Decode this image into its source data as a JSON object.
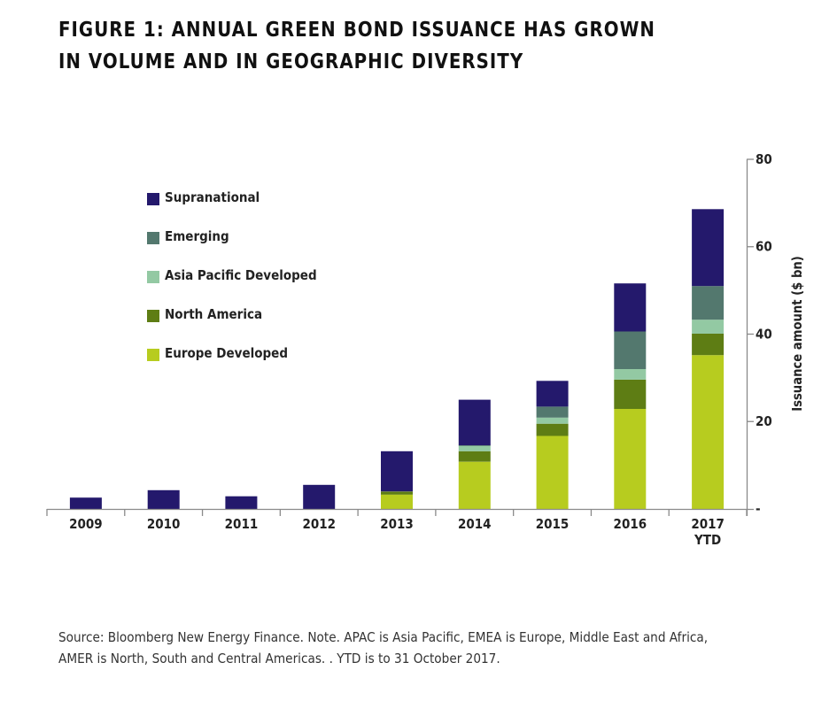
{
  "title_lines": [
    "FIGURE 1: ANNUAL GREEN BOND ISSUANCE HAS GROWN",
    "IN VOLUME AND IN GEOGRAPHIC DIVERSITY"
  ],
  "footnote_lines": [
    "Source: Bloomberg New Energy Finance. Note. APAC is Asia Pacific, EMEA is Europe, Middle East and Africa,",
    "AMER is North, South and Central Americas. .  YTD is to 31 October 2017."
  ],
  "chart_data": {
    "type": "bar",
    "stacked": true,
    "title": "FIGURE 1: ANNUAL GREEN BOND ISSUANCE HAS GROWN IN VOLUME AND IN GEOGRAPHIC DIVERSITY",
    "xlabel": "",
    "ylabel": "Issuance amount ($ bn)",
    "y_axis_position": "right",
    "ylim": [
      0,
      80
    ],
    "yticks": [
      0,
      20,
      40,
      60,
      80
    ],
    "ytick_labels": [
      "-",
      "20",
      "40",
      "60",
      "80"
    ],
    "grid": false,
    "legend_position": "top-left",
    "categories": [
      "2009",
      "2010",
      "2011",
      "2012",
      "2013",
      "2014",
      "2015",
      "2016",
      "2017 YTD"
    ],
    "category_labels": [
      [
        "2009"
      ],
      [
        "2010"
      ],
      [
        "2011"
      ],
      [
        "2012"
      ],
      [
        "2013"
      ],
      [
        "2014"
      ],
      [
        "2015"
      ],
      [
        "2016"
      ],
      [
        "2017",
        "YTD"
      ]
    ],
    "series": [
      {
        "name": "Europe Developed",
        "color": "#b7cc1f",
        "values": [
          0,
          0,
          0,
          0,
          3.3,
          10.8,
          16.7,
          22.9,
          35.2
        ]
      },
      {
        "name": "North America",
        "color": "#5e7d14",
        "values": [
          0,
          0,
          0,
          0,
          0.7,
          2.4,
          2.8,
          6.7,
          4.9
        ]
      },
      {
        "name": "Asia Pacific Developed",
        "color": "#93c9a3",
        "values": [
          0,
          0,
          0,
          0,
          0,
          1.2,
          1.4,
          2.4,
          3.2
        ]
      },
      {
        "name": "Emerging",
        "color": "#53786e",
        "values": [
          0,
          0,
          0,
          0,
          0,
          0.2,
          2.5,
          8.6,
          7.7
        ]
      },
      {
        "name": "Supranational",
        "color": "#24196c",
        "values": [
          2.6,
          4.3,
          2.9,
          5.5,
          9.2,
          10.4,
          5.9,
          11.0,
          17.6
        ]
      }
    ],
    "legend_order": [
      "Supranational",
      "Emerging",
      "Asia Pacific Developed",
      "North America",
      "Europe Developed"
    ]
  }
}
